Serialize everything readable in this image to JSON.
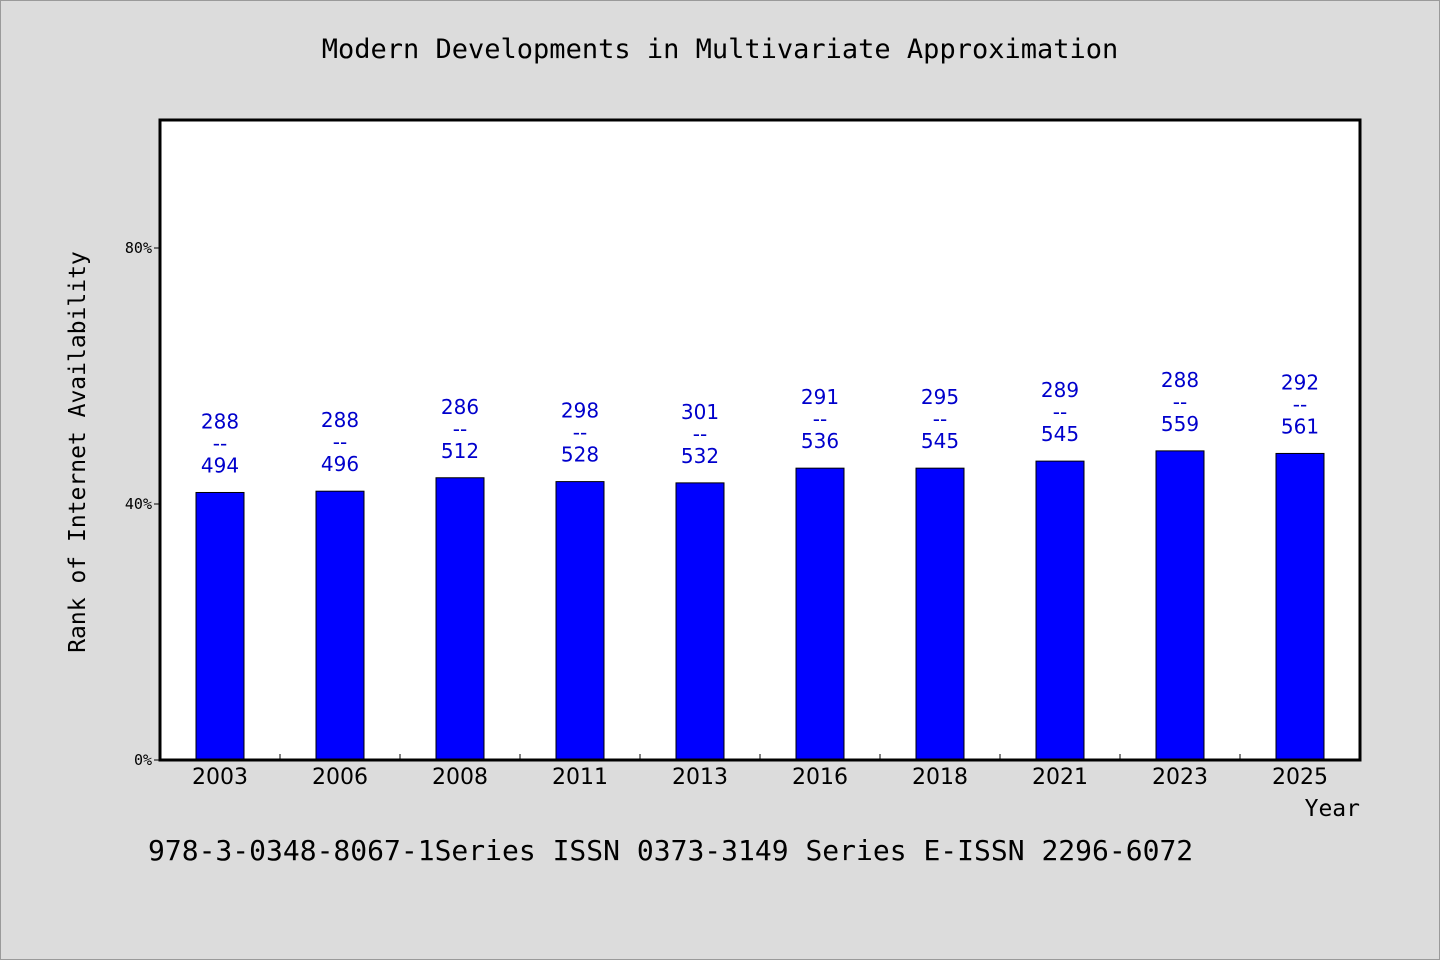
{
  "chart_data": {
    "type": "bar",
    "title": "Modern Developments in Multivariate Approximation",
    "xlabel": "Year",
    "ylabel": "Rank of Internet Availability",
    "categories": [
      "2003",
      "2006",
      "2008",
      "2011",
      "2013",
      "2016",
      "2018",
      "2021",
      "2023",
      "2025"
    ],
    "values": [
      41.8,
      42.0,
      44.1,
      43.5,
      43.3,
      45.6,
      45.6,
      46.7,
      48.3,
      47.9
    ],
    "data_labels": [
      [
        "288",
        "--",
        "494"
      ],
      [
        "288",
        "--",
        "496"
      ],
      [
        "286",
        "--",
        "512"
      ],
      [
        "298",
        "--",
        "528"
      ],
      [
        "301",
        "--",
        "532"
      ],
      [
        "291",
        "--",
        "536"
      ],
      [
        "295",
        "--",
        "545"
      ],
      [
        "289",
        "--",
        "545"
      ],
      [
        "288",
        "--",
        "559"
      ],
      [
        "292",
        "--",
        "561"
      ]
    ],
    "yticks": [
      0,
      40,
      80
    ],
    "ytick_labels": [
      "0%",
      "40%",
      "80%"
    ],
    "ylim": [
      0,
      100
    ],
    "grid": false,
    "legend": "none",
    "bar_color": "#0000ff",
    "label_color": "#0000cc",
    "background_color": "#dcdcdc",
    "plot_background": "#ffffff"
  },
  "footer": {
    "note": "978-3-0348-8067-1Series ISSN 0373-3149 Series E-ISSN 2296-6072"
  }
}
